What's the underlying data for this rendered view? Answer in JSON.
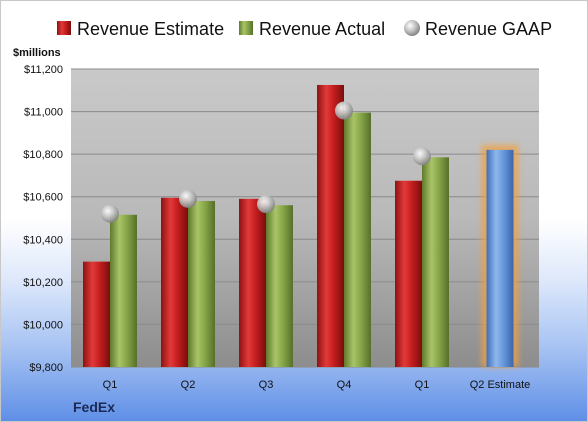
{
  "brand": "FedEx",
  "chart_data": {
    "type": "bar",
    "unit_label": "$millions",
    "categories": [
      "Q1",
      "Q2",
      "Q3",
      "Q4",
      "Q1",
      "Q2 Estimate"
    ],
    "series": [
      {
        "name": "Revenue Estimate",
        "color": "#cc1f1f",
        "kind": "bar",
        "values": [
          10295,
          10595,
          10590,
          11125,
          10675,
          null
        ]
      },
      {
        "name": "Revenue Actual",
        "color": "#8aa94a",
        "kind": "bar",
        "values": [
          10515,
          10580,
          10560,
          10995,
          10785,
          null
        ]
      },
      {
        "name": "Revenue GAAP",
        "color": "#a0a0a0",
        "kind": "marker",
        "values": [
          10520,
          10590,
          10565,
          11005,
          10790,
          null
        ]
      },
      {
        "name": "Q2 Estimate",
        "color": "#6a9be0",
        "kind": "bar",
        "values": [
          null,
          null,
          null,
          null,
          null,
          10820
        ]
      }
    ],
    "legend": [
      "Revenue Estimate",
      "Revenue Actual",
      "Revenue GAAP"
    ],
    "legend_position": "top",
    "ylim": [
      9800,
      11200
    ],
    "y_ticks": [
      "$9,800",
      "$10,000",
      "$10,200",
      "$10,400",
      "$10,600",
      "$10,800",
      "$11,000",
      "$11,200"
    ],
    "y_tick_values": [
      9800,
      10000,
      10200,
      10400,
      10600,
      10800,
      11000,
      11200
    ],
    "grid": true
  }
}
